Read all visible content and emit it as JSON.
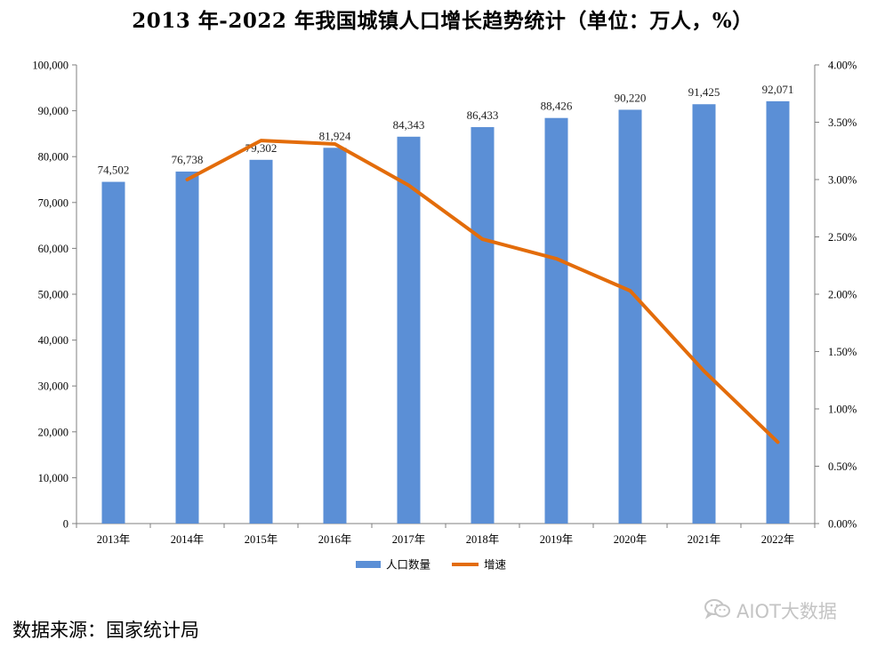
{
  "chart_data": {
    "type": "bar+line",
    "title": "2013 年-2022 年我国城镇人口增长趋势统计（单位：万人，%）",
    "categories": [
      "2013年",
      "2014年",
      "2015年",
      "2016年",
      "2017年",
      "2018年",
      "2019年",
      "2020年",
      "2021年",
      "2022年"
    ],
    "series": [
      {
        "name": "人口数量",
        "type": "bar",
        "axis": "left",
        "color": "#5B8FD6",
        "values": [
          74502,
          76738,
          79302,
          81924,
          84343,
          86433,
          88426,
          90220,
          91425,
          92071
        ],
        "labels": [
          "74,502",
          "76,738",
          "79,302",
          "81,924",
          "84,343",
          "86,433",
          "88,426",
          "90,220",
          "91,425",
          "92,071"
        ]
      },
      {
        "name": "增速",
        "type": "line",
        "axis": "right",
        "color": "#E36C0A",
        "x": [
          "2014年",
          "2015年",
          "2016年",
          "2017年",
          "2018年",
          "2019年",
          "2020年",
          "2021年",
          "2022年"
        ],
        "values": [
          3.0,
          3.34,
          3.31,
          2.95,
          2.48,
          2.31,
          2.03,
          1.33,
          0.71
        ]
      }
    ],
    "left_axis": {
      "ylim": [
        0,
        100000
      ],
      "ticks": [
        0,
        10000,
        20000,
        30000,
        40000,
        50000,
        60000,
        70000,
        80000,
        90000,
        100000
      ],
      "tick_labels": [
        "0",
        "10,000",
        "20,000",
        "30,000",
        "40,000",
        "50,000",
        "60,000",
        "70,000",
        "80,000",
        "90,000",
        "100,000"
      ]
    },
    "right_axis": {
      "ylim": [
        0,
        4
      ],
      "ticks": [
        0,
        0.5,
        1,
        1.5,
        2,
        2.5,
        3,
        3.5,
        4
      ],
      "tick_labels": [
        "0.00%",
        "0.50%",
        "1.00%",
        "1.50%",
        "2.00%",
        "2.50%",
        "3.00%",
        "3.50%",
        "4.00%"
      ]
    },
    "legend": {
      "position": "bottom-center",
      "items": [
        "人口数量",
        "增速"
      ]
    },
    "grid": false
  },
  "footer": {
    "source": "数据来源：国家统计局",
    "watermark": "AIOT大数据",
    "watermark_icon": "wechat-icon"
  }
}
